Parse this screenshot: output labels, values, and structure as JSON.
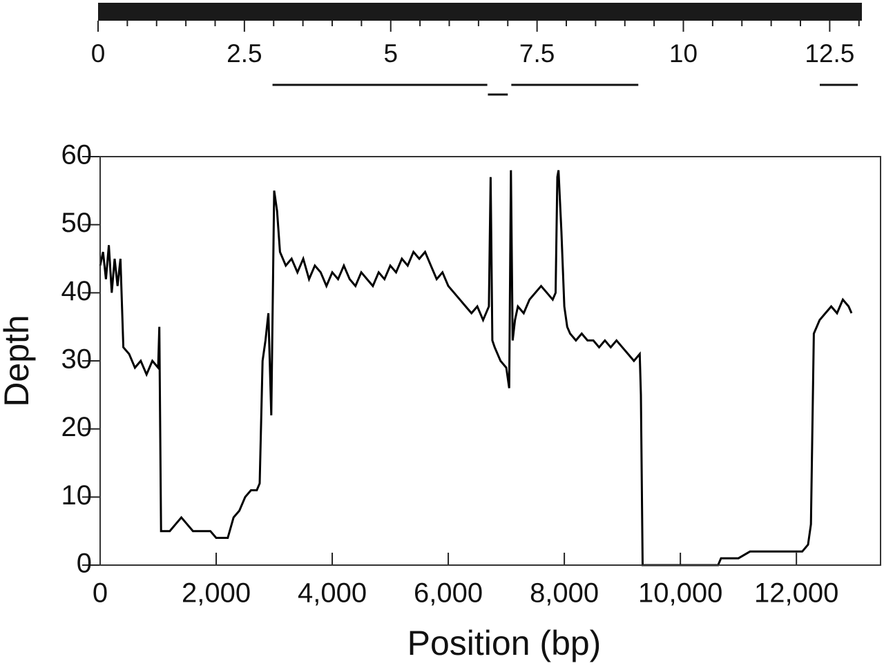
{
  "chart_data": [
    {
      "type": "segments",
      "xlim": [
        0,
        13.05
      ],
      "xticks": [
        0,
        2.5,
        5,
        7.5,
        10,
        12.5
      ],
      "minor_xticks": [
        0.5,
        1,
        1.5,
        2,
        3,
        3.5,
        4,
        4.5,
        5.5,
        6,
        6.5,
        7,
        8,
        8.5,
        9,
        9.5,
        10.5,
        11,
        11.5,
        12,
        13
      ],
      "color": "#1a1a1a",
      "segments": {
        "start": [
          2.98,
          6.66,
          7.06,
          12.33
        ],
        "end": [
          6.65,
          7.0,
          9.23,
          12.98
        ]
      }
    },
    {
      "type": "line",
      "x_label": "Position (bp)",
      "y_label": "Depth",
      "xlim": [
        0,
        13450
      ],
      "ylim": [
        0,
        60
      ],
      "xticks": [
        0,
        {
          "value": 2000,
          "label": "2,000"
        },
        {
          "value": 4000,
          "label": "4,000"
        },
        {
          "value": 6000,
          "label": "6,000"
        },
        {
          "value": 8000,
          "label": "8,000"
        },
        {
          "value": 10000,
          "label": "10,000"
        },
        {
          "value": 12000,
          "label": "12,000"
        }
      ],
      "yticks": [
        0,
        10,
        20,
        30,
        40,
        50,
        60
      ],
      "color": "#000000",
      "x": [
        0,
        50,
        100,
        150,
        200,
        250,
        300,
        350,
        400,
        500,
        600,
        700,
        800,
        900,
        1000,
        1020,
        1050,
        1200,
        1300,
        1400,
        1500,
        1600,
        1700,
        1800,
        1900,
        2000,
        2100,
        2200,
        2300,
        2400,
        2500,
        2600,
        2700,
        2750,
        2800,
        2850,
        2900,
        2950,
        3000,
        3050,
        3100,
        3200,
        3300,
        3400,
        3500,
        3600,
        3700,
        3800,
        3900,
        4000,
        4100,
        4200,
        4300,
        4400,
        4500,
        4600,
        4700,
        4800,
        4900,
        5000,
        5100,
        5200,
        5300,
        5400,
        5500,
        5600,
        5700,
        5800,
        5900,
        6000,
        6100,
        6200,
        6300,
        6400,
        6500,
        6600,
        6650,
        6700,
        6730,
        6760,
        6800,
        6900,
        7000,
        7050,
        7080,
        7110,
        7150,
        7200,
        7300,
        7400,
        7500,
        7600,
        7700,
        7800,
        7850,
        7880,
        7900,
        7950,
        8000,
        8050,
        8100,
        8200,
        8300,
        8400,
        8500,
        8600,
        8700,
        8800,
        8900,
        9000,
        9100,
        9200,
        9300,
        9320,
        9350,
        10650,
        10700,
        10800,
        11000,
        11200,
        11400,
        11600,
        11800,
        12000,
        12100,
        12200,
        12250,
        12300,
        12400,
        12500,
        12600,
        12700,
        12800,
        12900,
        12950
      ],
      "values": [
        44,
        46,
        42,
        47,
        40,
        45,
        41,
        45,
        32,
        31,
        29,
        30,
        28,
        30,
        29,
        35,
        5,
        5,
        6,
        7,
        6,
        5,
        5,
        5,
        5,
        4,
        4,
        4,
        7,
        8,
        10,
        11,
        11,
        12,
        30,
        33,
        37,
        22,
        55,
        52,
        46,
        44,
        45,
        43,
        45,
        42,
        44,
        43,
        41,
        43,
        42,
        44,
        42,
        41,
        43,
        42,
        41,
        43,
        42,
        44,
        43,
        45,
        44,
        46,
        45,
        46,
        44,
        42,
        43,
        41,
        40,
        39,
        38,
        37,
        38,
        36,
        37,
        38,
        57,
        33,
        32,
        30,
        29,
        26,
        58,
        33,
        36,
        38,
        37,
        39,
        40,
        41,
        40,
        39,
        40,
        57,
        58,
        49,
        38,
        35,
        34,
        33,
        34,
        33,
        33,
        32,
        33,
        32,
        33,
        32,
        31,
        30,
        31,
        25,
        0,
        0,
        1,
        1,
        1,
        2,
        2,
        2,
        2,
        2,
        2,
        3,
        6,
        34,
        36,
        37,
        38,
        37,
        39,
        38,
        37
      ]
    }
  ]
}
